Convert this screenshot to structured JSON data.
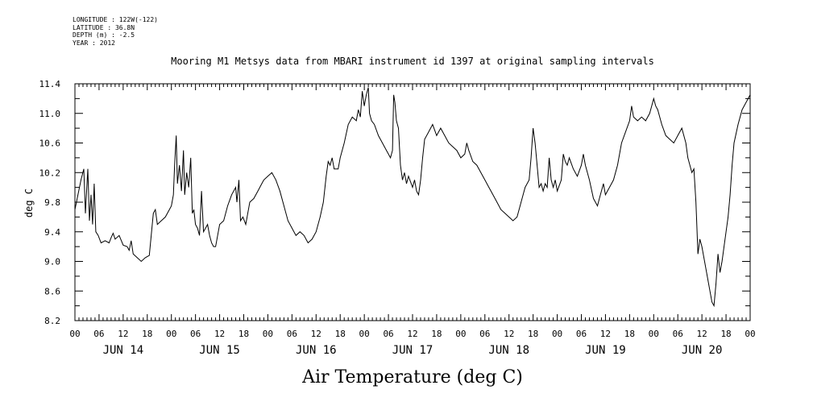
{
  "header": {
    "longitude": "LONGITUDE : 122W(-122)",
    "latitude": "LATITUDE : 36.8N",
    "depth": "DEPTH (m) : -2.5",
    "year": "YEAR : 2012"
  },
  "chart_data": {
    "type": "line",
    "title": "Mooring M1 Metsys data from MBARI instrument id 1397 at original sampling intervals",
    "xlabel": "Air Temperature (deg C)",
    "ylabel": "deg C",
    "xlim_hours": [
      0,
      168
    ],
    "ylim": [
      8.2,
      11.4
    ],
    "y_ticks": [
      "8.2",
      "8.6",
      "9.0",
      "9.4",
      "9.8",
      "10.2",
      "10.6",
      "11.0",
      "11.4"
    ],
    "x_hour_labels": [
      "00",
      "06",
      "12",
      "18",
      "00",
      "06",
      "12",
      "18",
      "00",
      "06",
      "12",
      "18",
      "00",
      "06",
      "12",
      "18",
      "00",
      "06",
      "12",
      "18",
      "00",
      "06",
      "12",
      "18",
      "00",
      "06",
      "12",
      "18",
      "00"
    ],
    "day_labels": [
      "JUN 14",
      "JUN 15",
      "JUN 16",
      "JUN 17",
      "JUN 18",
      "JUN 19",
      "JUN 20"
    ],
    "grid": false,
    "series": [
      {
        "color": "#000000",
        "points": [
          [
            0.0,
            9.7
          ],
          [
            1.5,
            10.1
          ],
          [
            2.2,
            10.25
          ],
          [
            2.6,
            9.65
          ],
          [
            3.2,
            10.25
          ],
          [
            3.6,
            9.55
          ],
          [
            4.0,
            9.9
          ],
          [
            4.4,
            9.5
          ],
          [
            4.8,
            10.05
          ],
          [
            5.2,
            9.4
          ],
          [
            5.8,
            9.35
          ],
          [
            6.5,
            9.25
          ],
          [
            7.5,
            9.28
          ],
          [
            8.5,
            9.25
          ],
          [
            9.0,
            9.32
          ],
          [
            9.5,
            9.38
          ],
          [
            10.0,
            9.3
          ],
          [
            11.0,
            9.35
          ],
          [
            12.0,
            9.22
          ],
          [
            13.0,
            9.2
          ],
          [
            13.5,
            9.15
          ],
          [
            14.0,
            9.28
          ],
          [
            14.5,
            9.1
          ],
          [
            15.5,
            9.05
          ],
          [
            16.5,
            9.0
          ],
          [
            17.5,
            9.05
          ],
          [
            18.5,
            9.08
          ],
          [
            19.5,
            9.65
          ],
          [
            20.0,
            9.7
          ],
          [
            20.5,
            9.5
          ],
          [
            21.5,
            9.55
          ],
          [
            22.5,
            9.6
          ],
          [
            23.5,
            9.7
          ],
          [
            24.0,
            9.75
          ],
          [
            24.5,
            9.9
          ],
          [
            24.8,
            10.3
          ],
          [
            25.2,
            10.7
          ],
          [
            25.5,
            10.05
          ],
          [
            26.0,
            10.3
          ],
          [
            26.5,
            9.95
          ],
          [
            27.0,
            10.5
          ],
          [
            27.3,
            9.9
          ],
          [
            27.8,
            10.2
          ],
          [
            28.3,
            10.0
          ],
          [
            28.8,
            10.4
          ],
          [
            29.2,
            9.65
          ],
          [
            29.6,
            9.7
          ],
          [
            30.0,
            9.5
          ],
          [
            30.5,
            9.45
          ],
          [
            31.0,
            9.35
          ],
          [
            31.5,
            9.95
          ],
          [
            32.0,
            9.4
          ],
          [
            32.5,
            9.45
          ],
          [
            33.0,
            9.5
          ],
          [
            33.5,
            9.35
          ],
          [
            34.0,
            9.25
          ],
          [
            34.5,
            9.2
          ],
          [
            35.0,
            9.2
          ],
          [
            35.5,
            9.35
          ],
          [
            36.0,
            9.5
          ],
          [
            37.0,
            9.55
          ],
          [
            38.0,
            9.75
          ],
          [
            39.0,
            9.9
          ],
          [
            40.0,
            10.0
          ],
          [
            40.3,
            9.8
          ],
          [
            40.8,
            10.1
          ],
          [
            41.2,
            9.55
          ],
          [
            41.8,
            9.6
          ],
          [
            42.5,
            9.5
          ],
          [
            43.0,
            9.65
          ],
          [
            43.5,
            9.8
          ],
          [
            44.5,
            9.85
          ],
          [
            45.5,
            9.95
          ],
          [
            46.5,
            10.05
          ],
          [
            47.0,
            10.1
          ],
          [
            48.0,
            10.15
          ],
          [
            49.0,
            10.2
          ],
          [
            50.0,
            10.1
          ],
          [
            51.0,
            9.95
          ],
          [
            52.0,
            9.75
          ],
          [
            53.0,
            9.55
          ],
          [
            54.0,
            9.45
          ],
          [
            55.0,
            9.35
          ],
          [
            56.0,
            9.4
          ],
          [
            57.0,
            9.35
          ],
          [
            58.0,
            9.25
          ],
          [
            59.0,
            9.3
          ],
          [
            60.0,
            9.4
          ],
          [
            61.0,
            9.6
          ],
          [
            61.8,
            9.8
          ],
          [
            62.5,
            10.15
          ],
          [
            63.0,
            10.35
          ],
          [
            63.5,
            10.3
          ],
          [
            64.0,
            10.4
          ],
          [
            64.5,
            10.25
          ],
          [
            65.5,
            10.25
          ],
          [
            66.0,
            10.4
          ],
          [
            67.0,
            10.6
          ],
          [
            68.0,
            10.85
          ],
          [
            69.0,
            10.95
          ],
          [
            70.0,
            10.9
          ],
          [
            70.5,
            11.05
          ],
          [
            71.0,
            10.95
          ],
          [
            71.5,
            11.3
          ],
          [
            72.0,
            11.1
          ],
          [
            72.5,
            11.25
          ],
          [
            73.0,
            11.35
          ],
          [
            73.3,
            11.0
          ],
          [
            73.8,
            10.9
          ],
          [
            74.5,
            10.85
          ],
          [
            75.5,
            10.7
          ],
          [
            76.5,
            10.6
          ],
          [
            77.5,
            10.5
          ],
          [
            78.0,
            10.45
          ],
          [
            78.5,
            10.4
          ],
          [
            79.0,
            10.5
          ],
          [
            79.3,
            11.25
          ],
          [
            79.6,
            11.15
          ],
          [
            80.0,
            10.9
          ],
          [
            80.5,
            10.8
          ],
          [
            81.0,
            10.3
          ],
          [
            81.5,
            10.1
          ],
          [
            82.0,
            10.2
          ],
          [
            82.5,
            10.05
          ],
          [
            83.0,
            10.15
          ],
          [
            84.0,
            10.0
          ],
          [
            84.5,
            10.1
          ],
          [
            85.0,
            9.95
          ],
          [
            85.5,
            9.9
          ],
          [
            86.0,
            10.1
          ],
          [
            86.5,
            10.4
          ],
          [
            87.0,
            10.65
          ],
          [
            88.0,
            10.75
          ],
          [
            89.0,
            10.85
          ],
          [
            90.0,
            10.7
          ],
          [
            91.0,
            10.8
          ],
          [
            92.0,
            10.7
          ],
          [
            93.0,
            10.6
          ],
          [
            94.0,
            10.55
          ],
          [
            95.0,
            10.5
          ],
          [
            96.0,
            10.4
          ],
          [
            97.0,
            10.45
          ],
          [
            97.5,
            10.6
          ],
          [
            98.0,
            10.5
          ],
          [
            99.0,
            10.35
          ],
          [
            100.0,
            10.3
          ],
          [
            101.0,
            10.2
          ],
          [
            102.0,
            10.1
          ],
          [
            103.0,
            10.0
          ],
          [
            104.0,
            9.9
          ],
          [
            105.0,
            9.8
          ],
          [
            106.0,
            9.7
          ],
          [
            107.0,
            9.65
          ],
          [
            108.0,
            9.6
          ],
          [
            109.0,
            9.55
          ],
          [
            110.0,
            9.6
          ],
          [
            110.5,
            9.7
          ],
          [
            111.0,
            9.8
          ],
          [
            112.0,
            10.0
          ],
          [
            113.0,
            10.1
          ],
          [
            113.5,
            10.4
          ],
          [
            114.0,
            10.8
          ],
          [
            114.5,
            10.6
          ],
          [
            115.0,
            10.3
          ],
          [
            115.5,
            10.0
          ],
          [
            116.0,
            10.05
          ],
          [
            116.5,
            9.95
          ],
          [
            117.0,
            10.05
          ],
          [
            117.5,
            10.0
          ],
          [
            118.0,
            10.4
          ],
          [
            118.5,
            10.1
          ],
          [
            119.0,
            10.0
          ],
          [
            119.5,
            10.1
          ],
          [
            120.0,
            9.95
          ],
          [
            121.0,
            10.1
          ],
          [
            121.5,
            10.45
          ],
          [
            122.0,
            10.35
          ],
          [
            122.5,
            10.3
          ],
          [
            123.0,
            10.4
          ],
          [
            124.0,
            10.25
          ],
          [
            125.0,
            10.15
          ],
          [
            126.0,
            10.3
          ],
          [
            126.5,
            10.45
          ],
          [
            127.0,
            10.3
          ],
          [
            128.0,
            10.1
          ],
          [
            129.0,
            9.85
          ],
          [
            130.0,
            9.75
          ],
          [
            130.5,
            9.85
          ],
          [
            131.0,
            9.95
          ],
          [
            131.5,
            10.05
          ],
          [
            132.0,
            9.9
          ],
          [
            133.0,
            10.0
          ],
          [
            134.0,
            10.1
          ],
          [
            135.0,
            10.3
          ],
          [
            136.0,
            10.6
          ],
          [
            137.0,
            10.75
          ],
          [
            138.0,
            10.9
          ],
          [
            138.5,
            11.1
          ],
          [
            139.0,
            10.95
          ],
          [
            140.0,
            10.9
          ],
          [
            141.0,
            10.95
          ],
          [
            142.0,
            10.9
          ],
          [
            143.0,
            11.0
          ],
          [
            144.0,
            11.2
          ],
          [
            144.5,
            11.1
          ],
          [
            145.0,
            11.05
          ],
          [
            146.0,
            10.85
          ],
          [
            147.0,
            10.7
          ],
          [
            148.0,
            10.65
          ],
          [
            149.0,
            10.6
          ],
          [
            150.0,
            10.7
          ],
          [
            151.0,
            10.8
          ],
          [
            152.0,
            10.6
          ],
          [
            152.5,
            10.4
          ],
          [
            153.0,
            10.3
          ],
          [
            153.5,
            10.2
          ],
          [
            154.0,
            10.25
          ],
          [
            154.5,
            9.8
          ],
          [
            155.0,
            9.1
          ],
          [
            155.5,
            9.3
          ],
          [
            156.0,
            9.2
          ],
          [
            156.5,
            9.05
          ],
          [
            157.0,
            8.9
          ],
          [
            157.5,
            8.75
          ],
          [
            158.0,
            8.6
          ],
          [
            158.5,
            8.45
          ],
          [
            159.0,
            8.4
          ],
          [
            159.5,
            8.7
          ],
          [
            160.0,
            9.1
          ],
          [
            160.5,
            8.85
          ],
          [
            161.0,
            9.0
          ],
          [
            161.5,
            9.2
          ],
          [
            162.0,
            9.4
          ],
          [
            162.5,
            9.6
          ],
          [
            163.0,
            9.9
          ],
          [
            163.5,
            10.3
          ],
          [
            164.0,
            10.6
          ],
          [
            165.0,
            10.85
          ],
          [
            166.0,
            11.05
          ],
          [
            167.0,
            11.15
          ],
          [
            168.0,
            11.25
          ]
        ]
      }
    ]
  }
}
